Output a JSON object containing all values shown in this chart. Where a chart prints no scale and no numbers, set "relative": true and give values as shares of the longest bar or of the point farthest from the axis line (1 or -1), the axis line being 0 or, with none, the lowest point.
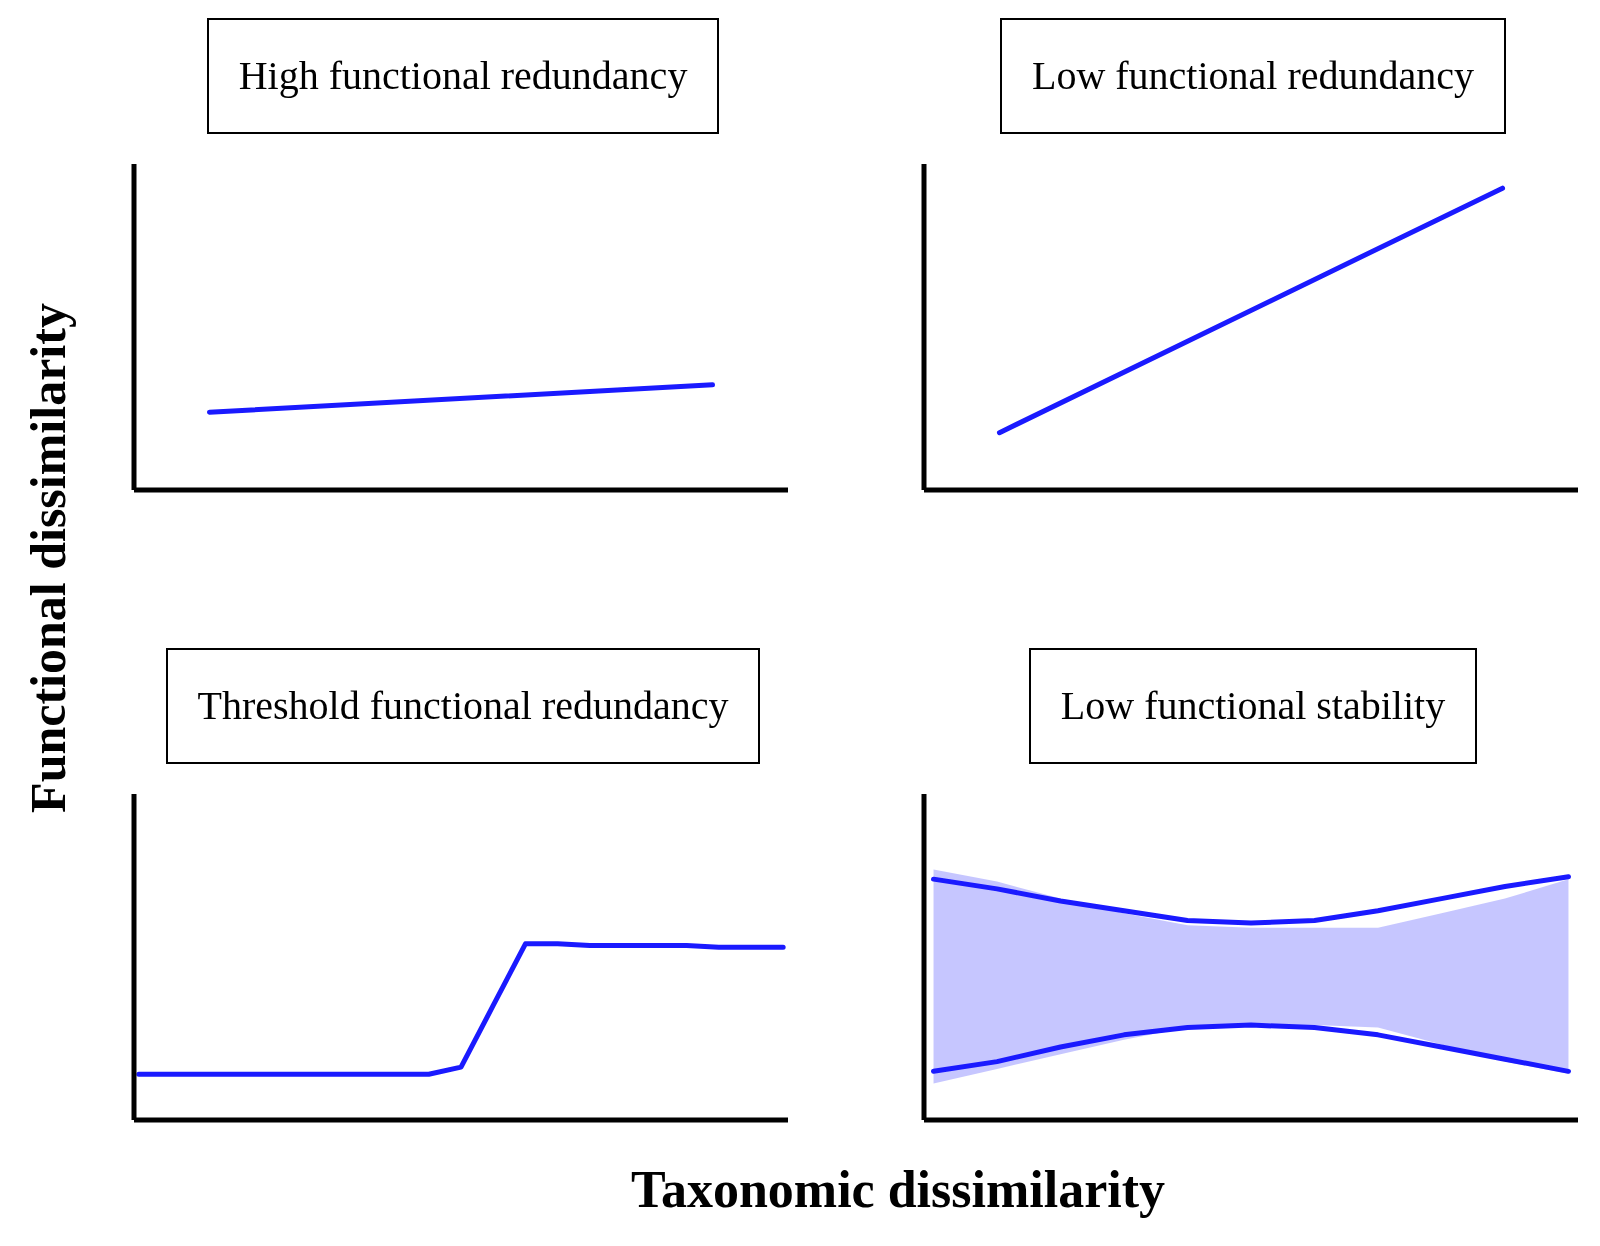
{
  "chart_data": [
    {
      "type": "line",
      "title": "High functional redundancy",
      "ylabel": "Functional dissimilarity",
      "relative": true,
      "categories": [
        null,
        null
      ],
      "series": [
        {
          "color": "#1a1aff",
          "values": [
            0.74,
            1
          ]
        }
      ]
    },
    {
      "type": "line",
      "title": "Low functional redundancy",
      "relative": true,
      "categories": [
        null,
        null
      ],
      "series": [
        {
          "color": "#1a1aff",
          "values": [
            0.19,
            1
          ]
        }
      ]
    },
    {
      "type": "line",
      "title": "Threshold functional redundancy",
      "xlabel": "Taxonomic dissimilarity",
      "relative": true,
      "categories": [
        null,
        null,
        null,
        null,
        null,
        null,
        null,
        null,
        null,
        null,
        null,
        null,
        null,
        null,
        null,
        null,
        null,
        null,
        null,
        null,
        null
      ],
      "series": [
        {
          "color": "#1a1aff",
          "values": [
            0.26,
            0.26,
            0.26,
            0.26,
            0.26,
            0.26,
            0.26,
            0.26,
            0.26,
            0.26,
            0.3,
            0.65,
            1,
            1,
            0.99,
            0.99,
            0.99,
            0.99,
            0.98,
            0.98,
            0.98
          ]
        }
      ]
    },
    {
      "type": "line",
      "title": "Low functional stability",
      "relative": true,
      "categories": [
        null,
        null,
        null,
        null,
        null,
        null,
        null,
        null,
        null,
        null,
        null
      ],
      "series": [
        {
          "color": "#1a1aff",
          "values": [
            0.99,
            0.95,
            0.9,
            0.86,
            0.82,
            0.81,
            0.82,
            0.86,
            0.91,
            0.96,
            1
          ],
          "lower": [
            0.15,
            0.21,
            0.27,
            0.33,
            0.38,
            0.39,
            0.39,
            0.38,
            0.31,
            0.24,
            0.19
          ],
          "upper": [
            1.03,
            0.98,
            0.91,
            0.85,
            0.8,
            0.79,
            0.79,
            0.79,
            0.85,
            0.91,
            0.99
          ]
        },
        {
          "color": "#1a1aff",
          "values": [
            0.2,
            0.24,
            0.3,
            0.35,
            0.38,
            0.39,
            0.38,
            0.35,
            0.3,
            0.25,
            0.2
          ]
        }
      ]
    }
  ]
}
